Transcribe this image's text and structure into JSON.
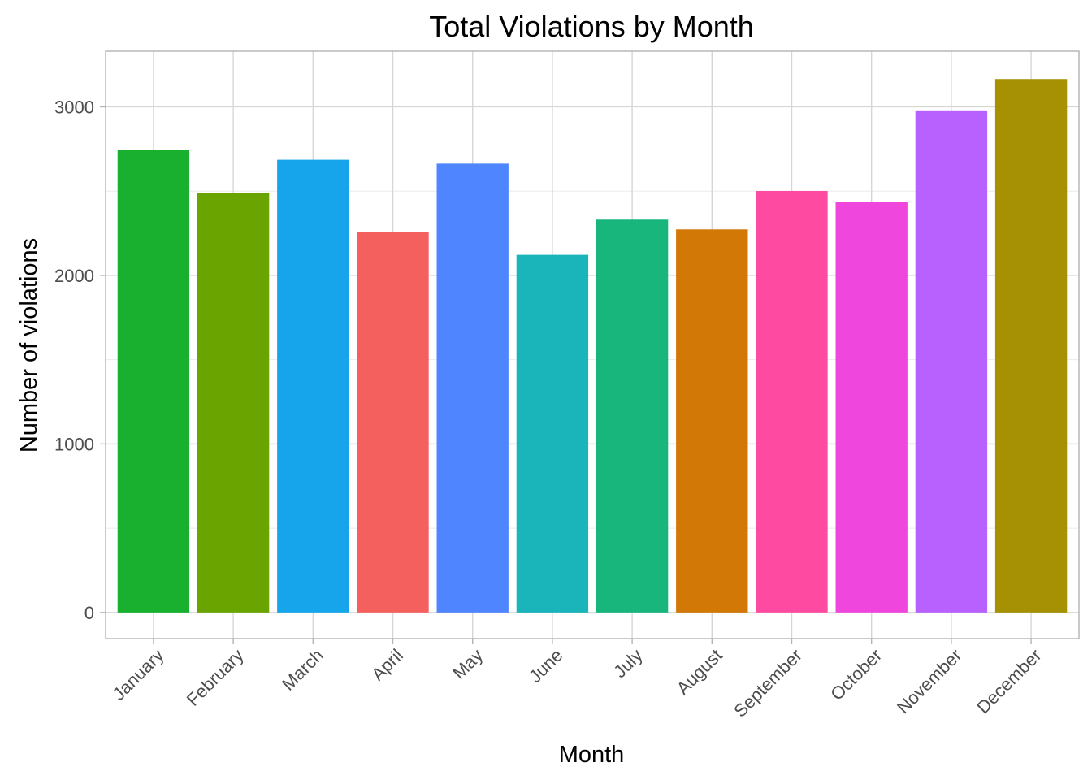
{
  "chart_data": {
    "type": "bar",
    "title": "Total Violations by Month",
    "xlabel": "Month",
    "ylabel": "Number of violations",
    "categories": [
      "January",
      "February",
      "March",
      "April",
      "May",
      "June",
      "July",
      "August",
      "September",
      "October",
      "November",
      "December"
    ],
    "values": [
      2745,
      2490,
      2686,
      2257,
      2663,
      2122,
      2331,
      2273,
      2501,
      2437,
      2979,
      3165
    ],
    "colors": [
      "#18B02E",
      "#6AA400",
      "#16A4EA",
      "#F4605E",
      "#4F86FF",
      "#19B5BA",
      "#18B57C",
      "#D27807",
      "#FF4AA2",
      "#EF47DE",
      "#B861FF",
      "#A69003"
    ],
    "yticks": [
      0,
      1000,
      2000,
      3000
    ],
    "ylim": [
      -155,
      3330
    ],
    "grid": true,
    "legend": "none"
  }
}
